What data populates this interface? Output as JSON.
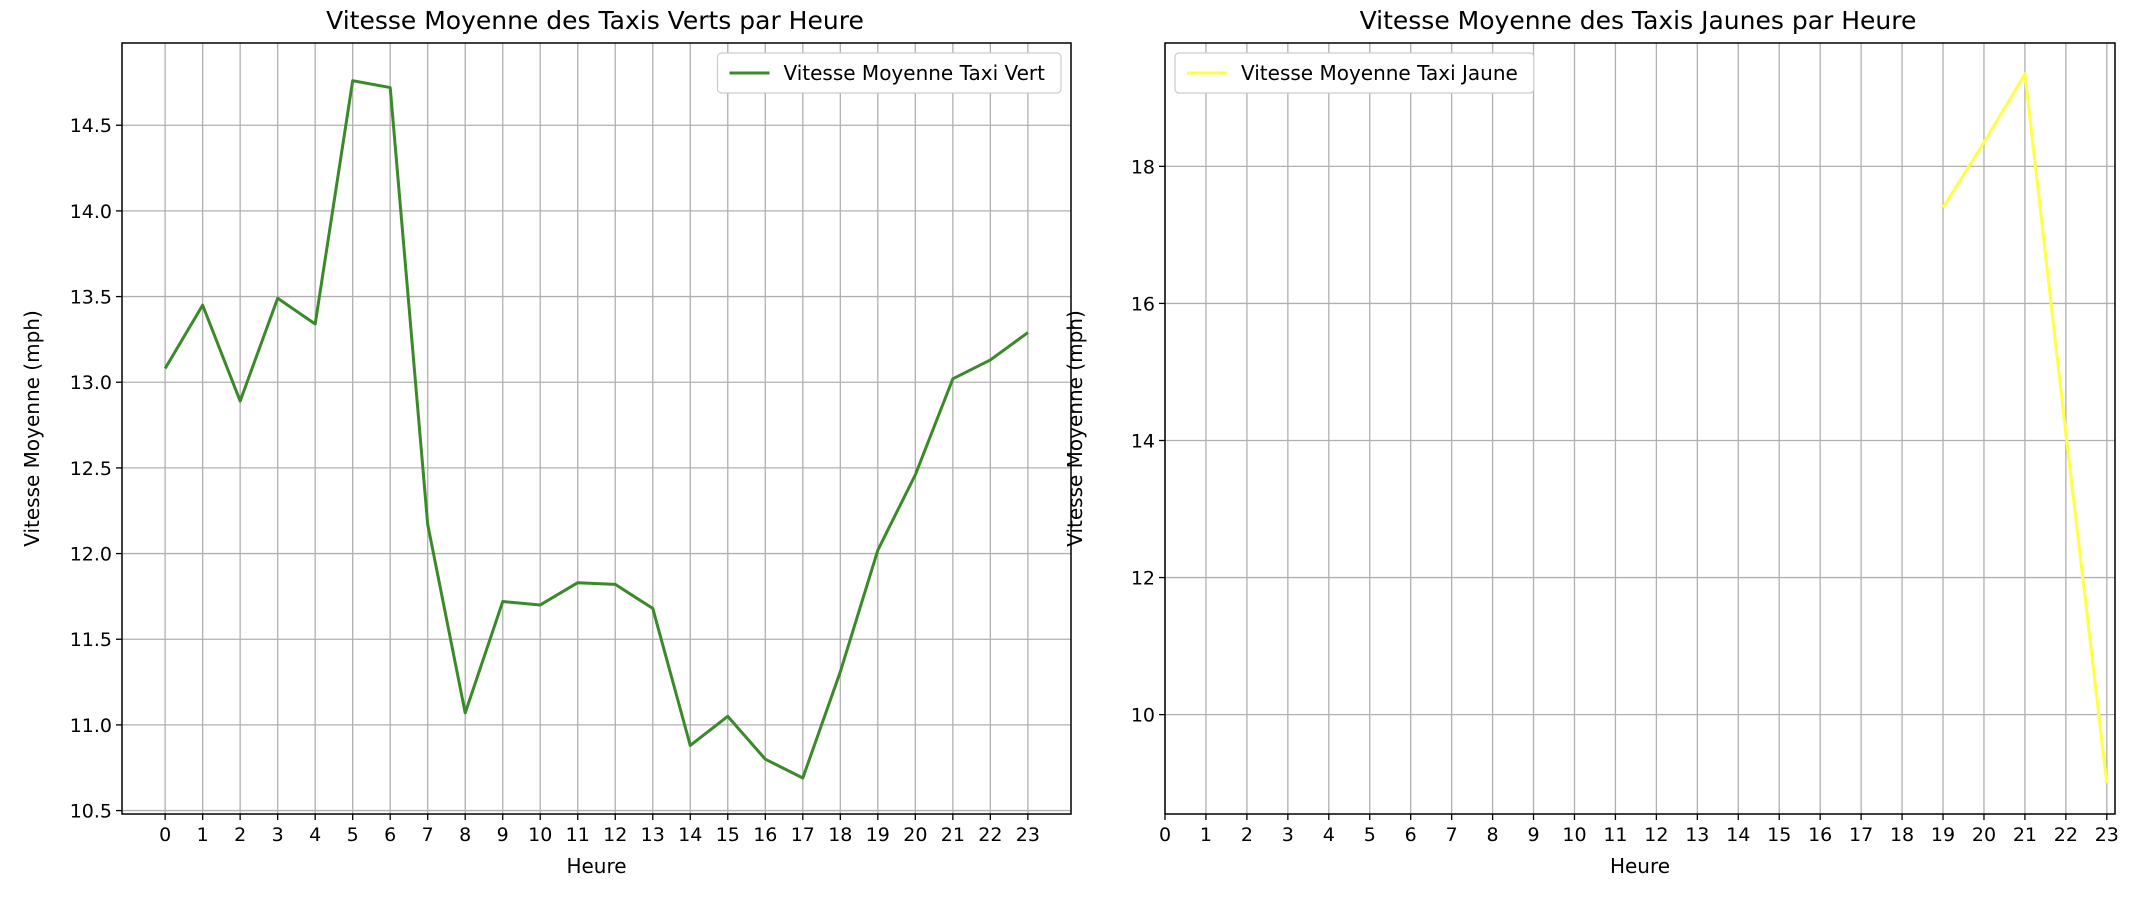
{
  "chart_data": [
    {
      "type": "line",
      "title": "Vitesse Moyenne des Taxis Verts par Heure",
      "xlabel": "Heure",
      "ylabel": "Vitesse Moyenne (mph)",
      "x": [
        0,
        1,
        2,
        3,
        4,
        5,
        6,
        7,
        8,
        9,
        10,
        11,
        12,
        13,
        14,
        15,
        16,
        17,
        18,
        19,
        20,
        21,
        22,
        23
      ],
      "xticks": [
        "0",
        "1",
        "2",
        "3",
        "4",
        "5",
        "6",
        "7",
        "8",
        "9",
        "10",
        "11",
        "12",
        "13",
        "14",
        "15",
        "16",
        "17",
        "18",
        "19",
        "20",
        "21",
        "22",
        "23"
      ],
      "xlim": [
        -1.15,
        24.15
      ],
      "ylim": [
        10.48,
        14.98
      ],
      "yticks": [
        10.5,
        11.0,
        11.5,
        12.0,
        12.5,
        13.0,
        13.5,
        14.0,
        14.5
      ],
      "ytick_labels": [
        "10.5",
        "11.0",
        "11.5",
        "12.0",
        "12.5",
        "13.0",
        "13.5",
        "14.0",
        "14.5"
      ],
      "grid": true,
      "legend_position": "top-right",
      "series": [
        {
          "name": "Vitesse Moyenne Taxi Vert",
          "color": "#3a8a2a",
          "values": [
            13.08,
            13.45,
            12.89,
            13.49,
            13.34,
            14.76,
            14.72,
            12.17,
            11.07,
            11.72,
            11.7,
            11.83,
            11.82,
            11.68,
            10.88,
            11.05,
            10.8,
            10.69,
            11.31,
            12.02,
            12.46,
            13.02,
            13.13,
            13.29
          ]
        }
      ]
    },
    {
      "type": "line",
      "title": "Vitesse Moyenne des Taxis Jaunes par Heure",
      "xlabel": "Heure",
      "ylabel": "Vitesse Moyenne (mph)",
      "x": [
        19,
        20,
        21,
        22,
        23
      ],
      "xticks": [
        "0",
        "1",
        "2",
        "3",
        "4",
        "5",
        "6",
        "7",
        "8",
        "9",
        "10",
        "11",
        "12",
        "13",
        "14",
        "15",
        "16",
        "17",
        "18",
        "19",
        "20",
        "21",
        "22",
        "23"
      ],
      "xlim": [
        0,
        23.2
      ],
      "ylim": [
        8.55,
        19.8
      ],
      "yticks": [
        10,
        12,
        14,
        16,
        18
      ],
      "ytick_labels": [
        "10",
        "12",
        "14",
        "16",
        "18"
      ],
      "grid": true,
      "legend_position": "top-left",
      "series": [
        {
          "name": "Vitesse Moyenne Taxi Jaune",
          "color": "#ffff44",
          "values": [
            17.4,
            18.35,
            19.35,
            14.1,
            9.0
          ]
        }
      ]
    }
  ]
}
